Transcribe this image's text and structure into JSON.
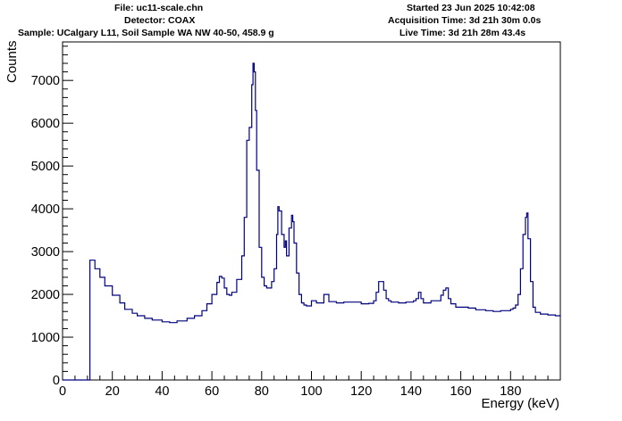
{
  "header": {
    "file": "File: uc11-scale.chn",
    "detector": "Detector: COAX",
    "sample": "Sample: UCalgary L11, Soil Sample WA NW 40-50, 458.9 g",
    "started": "Started 23 Jun 2025 10:42:08",
    "acquisition": "Acquisition Time: 3d 21h 30m 0.0s",
    "live": "Live Time: 3d 21h 28m 43.4s"
  },
  "chart_data": {
    "type": "line",
    "xlabel": "Energy (keV)",
    "ylabel": "Counts",
    "xlim": [
      0,
      200
    ],
    "ylim": [
      0,
      7900
    ],
    "x_ticks": [
      0,
      20,
      40,
      60,
      80,
      100,
      120,
      140,
      160,
      180
    ],
    "y_ticks": [
      0,
      1000,
      2000,
      3000,
      4000,
      5000,
      6000,
      7000
    ],
    "x_tick_labels": [
      "0",
      "20",
      "40",
      "60",
      "80",
      "100",
      "120",
      "140",
      "160",
      "180"
    ],
    "y_tick_labels": [
      "0",
      "1000",
      "2000",
      "3000",
      "4000",
      "5000",
      "6000",
      "7000"
    ],
    "grid": false,
    "line_color": "#00007f",
    "series": [
      {
        "x": [
          0,
          10.7,
          11,
          13,
          15,
          17,
          20,
          23,
          25,
          28,
          30,
          33,
          36,
          40,
          43,
          46,
          50,
          53,
          56,
          58,
          60,
          62,
          63,
          64,
          65,
          66,
          67,
          68,
          70,
          72,
          73,
          74,
          75,
          76,
          76.5,
          77,
          77.5,
          78,
          79,
          80,
          81,
          82,
          84,
          85,
          86,
          86.5,
          87,
          88,
          89,
          89.5,
          90,
          91,
          92,
          92.5,
          93,
          94,
          95,
          96,
          97,
          98,
          100,
          102,
          105,
          107,
          110,
          113,
          116,
          120,
          123,
          125,
          126,
          127,
          128,
          129,
          130,
          131,
          132,
          135,
          138,
          141,
          142,
          143,
          144,
          145,
          148,
          150,
          152,
          153,
          154,
          155,
          156,
          158,
          160,
          163,
          166,
          170,
          173,
          176,
          180,
          181,
          182,
          183,
          184,
          185,
          186,
          186.5,
          187,
          188,
          189,
          190,
          192,
          195,
          198,
          200
        ],
        "y": [
          0,
          0,
          2800,
          2600,
          2400,
          2200,
          1980,
          1800,
          1650,
          1560,
          1500,
          1440,
          1400,
          1360,
          1340,
          1380,
          1440,
          1500,
          1620,
          1780,
          2000,
          2280,
          2420,
          2380,
          2150,
          2000,
          1980,
          2050,
          2350,
          2900,
          3800,
          5600,
          5900,
          6900,
          7400,
          7200,
          6300,
          4900,
          3100,
          2400,
          2200,
          2150,
          2300,
          2600,
          3400,
          4050,
          3950,
          3400,
          3100,
          3250,
          2900,
          3550,
          3850,
          3700,
          3200,
          2500,
          2000,
          1800,
          1750,
          1730,
          1850,
          1800,
          2000,
          1830,
          1800,
          1820,
          1820,
          1780,
          1790,
          1850,
          2050,
          2300,
          2300,
          2100,
          1900,
          1850,
          1820,
          1800,
          1820,
          1850,
          1900,
          2050,
          1900,
          1800,
          1850,
          1850,
          1980,
          2100,
          2150,
          1900,
          1780,
          1700,
          1700,
          1680,
          1640,
          1620,
          1600,
          1620,
          1650,
          1680,
          1750,
          2000,
          2600,
          3400,
          3800,
          3900,
          3300,
          2300,
          1700,
          1580,
          1540,
          1520,
          1500,
          1490
        ]
      }
    ]
  }
}
